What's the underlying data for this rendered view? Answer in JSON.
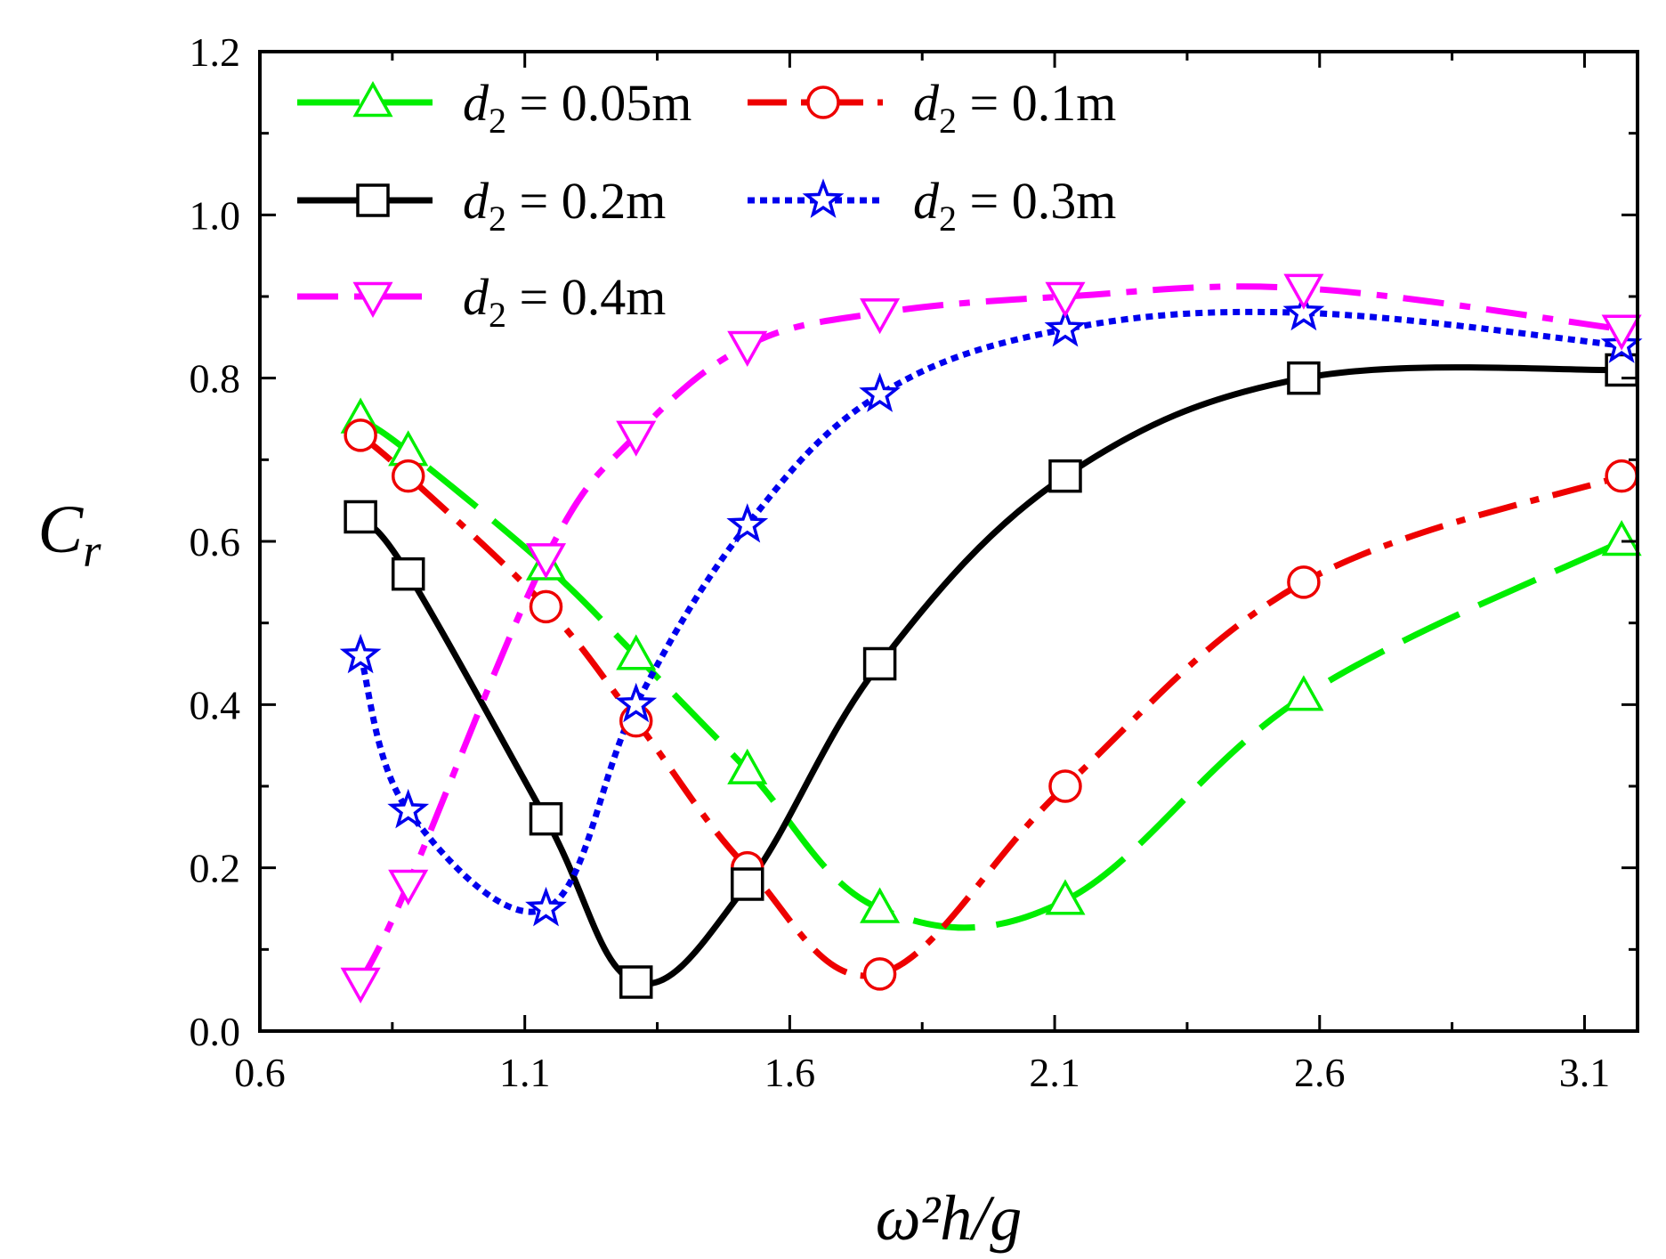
{
  "chart_data": {
    "type": "line",
    "title": "",
    "xlabel": "ω²h/g",
    "ylabel": "C_r",
    "xlim": [
      0.6,
      3.2
    ],
    "ylim": [
      0.0,
      1.2
    ],
    "xticks": [
      0.6,
      1.1,
      1.6,
      2.1,
      2.6,
      3.1
    ],
    "xtick_labels": [
      "0.6",
      "1.1",
      "1.6",
      "2.1",
      "2.6",
      "3.1"
    ],
    "yticks": [
      0.0,
      0.2,
      0.4,
      0.6,
      0.8,
      1.0,
      1.2
    ],
    "ytick_labels": [
      "0.0",
      "0.2",
      "0.4",
      "0.6",
      "0.8",
      "1.0",
      "1.2"
    ],
    "grid": false,
    "legend_position": "top-left",
    "series": [
      {
        "name": "d2 = 0.05m",
        "label_var": "d",
        "label_sub": "2",
        "label_rest": " = 0.05m",
        "color": "#00ee00",
        "marker": "triangle-up",
        "dash": "70 24",
        "x": [
          0.79,
          0.88,
          1.14,
          1.31,
          1.52,
          1.77,
          2.12,
          2.57,
          3.17
        ],
        "y": [
          0.75,
          0.71,
          0.57,
          0.46,
          0.32,
          0.15,
          0.16,
          0.41,
          0.6
        ]
      },
      {
        "name": "d2 = 0.1m",
        "label_var": "d",
        "label_sub": "2",
        "label_rest": " = 0.1m",
        "color": "#ee0000",
        "marker": "circle",
        "dash": "44 16 10 16",
        "x": [
          0.79,
          0.88,
          1.14,
          1.31,
          1.52,
          1.77,
          2.12,
          2.57,
          3.17
        ],
        "y": [
          0.73,
          0.68,
          0.52,
          0.38,
          0.2,
          0.07,
          0.3,
          0.55,
          0.68
        ]
      },
      {
        "name": "d2 = 0.2m",
        "label_var": "d",
        "label_sub": "2",
        "label_rest": " = 0.2m",
        "color": "#000000",
        "marker": "square",
        "dash": "none",
        "x": [
          0.79,
          0.88,
          1.14,
          1.31,
          1.52,
          1.77,
          2.12,
          2.57,
          3.17
        ],
        "y": [
          0.63,
          0.56,
          0.26,
          0.06,
          0.18,
          0.45,
          0.68,
          0.8,
          0.81
        ]
      },
      {
        "name": "d2 = 0.3m",
        "label_var": "d",
        "label_sub": "2",
        "label_rest": " = 0.3m",
        "color": "#0000ee",
        "marker": "star",
        "dash": "8 6",
        "x": [
          0.79,
          0.88,
          1.14,
          1.31,
          1.52,
          1.77,
          2.12,
          2.57,
          3.17
        ],
        "y": [
          0.46,
          0.27,
          0.15,
          0.4,
          0.62,
          0.78,
          0.86,
          0.88,
          0.84
        ]
      },
      {
        "name": "d2 = 0.4m",
        "label_var": "d",
        "label_sub": "2",
        "label_rest": " = 0.4m",
        "color": "#ff00ff",
        "marker": "triangle-down",
        "dash": "46 18 12 18",
        "x": [
          0.79,
          0.88,
          1.14,
          1.31,
          1.52,
          1.77,
          2.12,
          2.57,
          3.17
        ],
        "y": [
          0.06,
          0.18,
          0.58,
          0.73,
          0.84,
          0.88,
          0.9,
          0.91,
          0.86
        ]
      }
    ]
  }
}
